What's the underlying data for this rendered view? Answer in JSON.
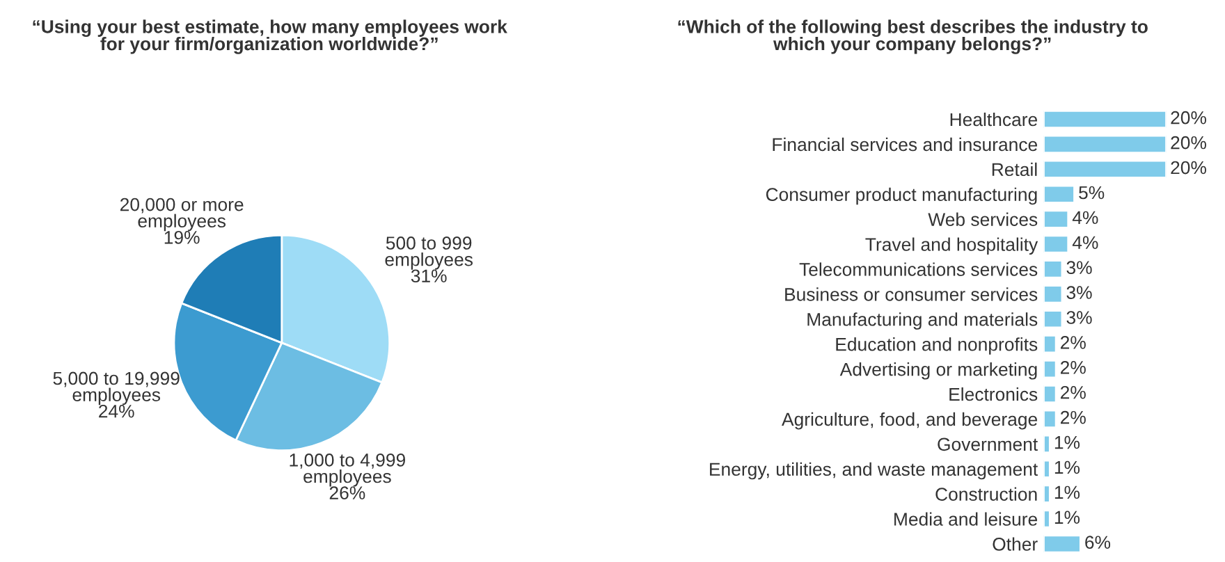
{
  "chart_data": [
    {
      "type": "pie",
      "title": "“Using your best estimate, how many employees work\nfor your firm/organization worldwide?”",
      "categories": [
        "500 to 999\nemployees",
        "1,000 to 4,999\nemployees",
        "5,000 to 19,999\nemployees",
        "20,000 or more\nemployees"
      ],
      "values": [
        31,
        26,
        24,
        19
      ],
      "value_labels": [
        "31%",
        "26%",
        "24%",
        "19%"
      ],
      "colors": [
        "#9edcf6",
        "#6cbde3",
        "#3c9bd0",
        "#1f7db6"
      ]
    },
    {
      "type": "bar",
      "orientation": "horizontal",
      "tick_labels": "y",
      "color": "#7fcbea",
      "title": "“Which of the following best describes the industry to\nwhich your company belongs?”",
      "categories": [
        "Healthcare",
        "Financial services and insurance",
        "Retail",
        "Consumer product manufacturing",
        "Web services",
        "Travel and hospitality",
        "Telecommunications services",
        "Business or consumer services",
        "Manufacturing and materials",
        "Education and nonprofits",
        "Advertising or marketing",
        "Electronics",
        "Agriculture, food, and beverage",
        "Government",
        "Energy, utilities, and waste management",
        "Construction",
        "Media and leisure",
        "Other"
      ],
      "values": [
        20,
        20,
        20,
        5,
        4,
        4,
        3,
        3,
        3,
        2,
        2,
        2,
        2,
        1,
        1,
        1,
        1,
        6
      ],
      "value_labels": [
        "20%",
        "20%",
        "20%",
        "5%",
        "4%",
        "4%",
        "3%",
        "3%",
        "3%",
        "2%",
        "2%",
        "2%",
        "2%",
        "1%",
        "1%",
        "1%",
        "1%",
        "6%"
      ]
    }
  ]
}
